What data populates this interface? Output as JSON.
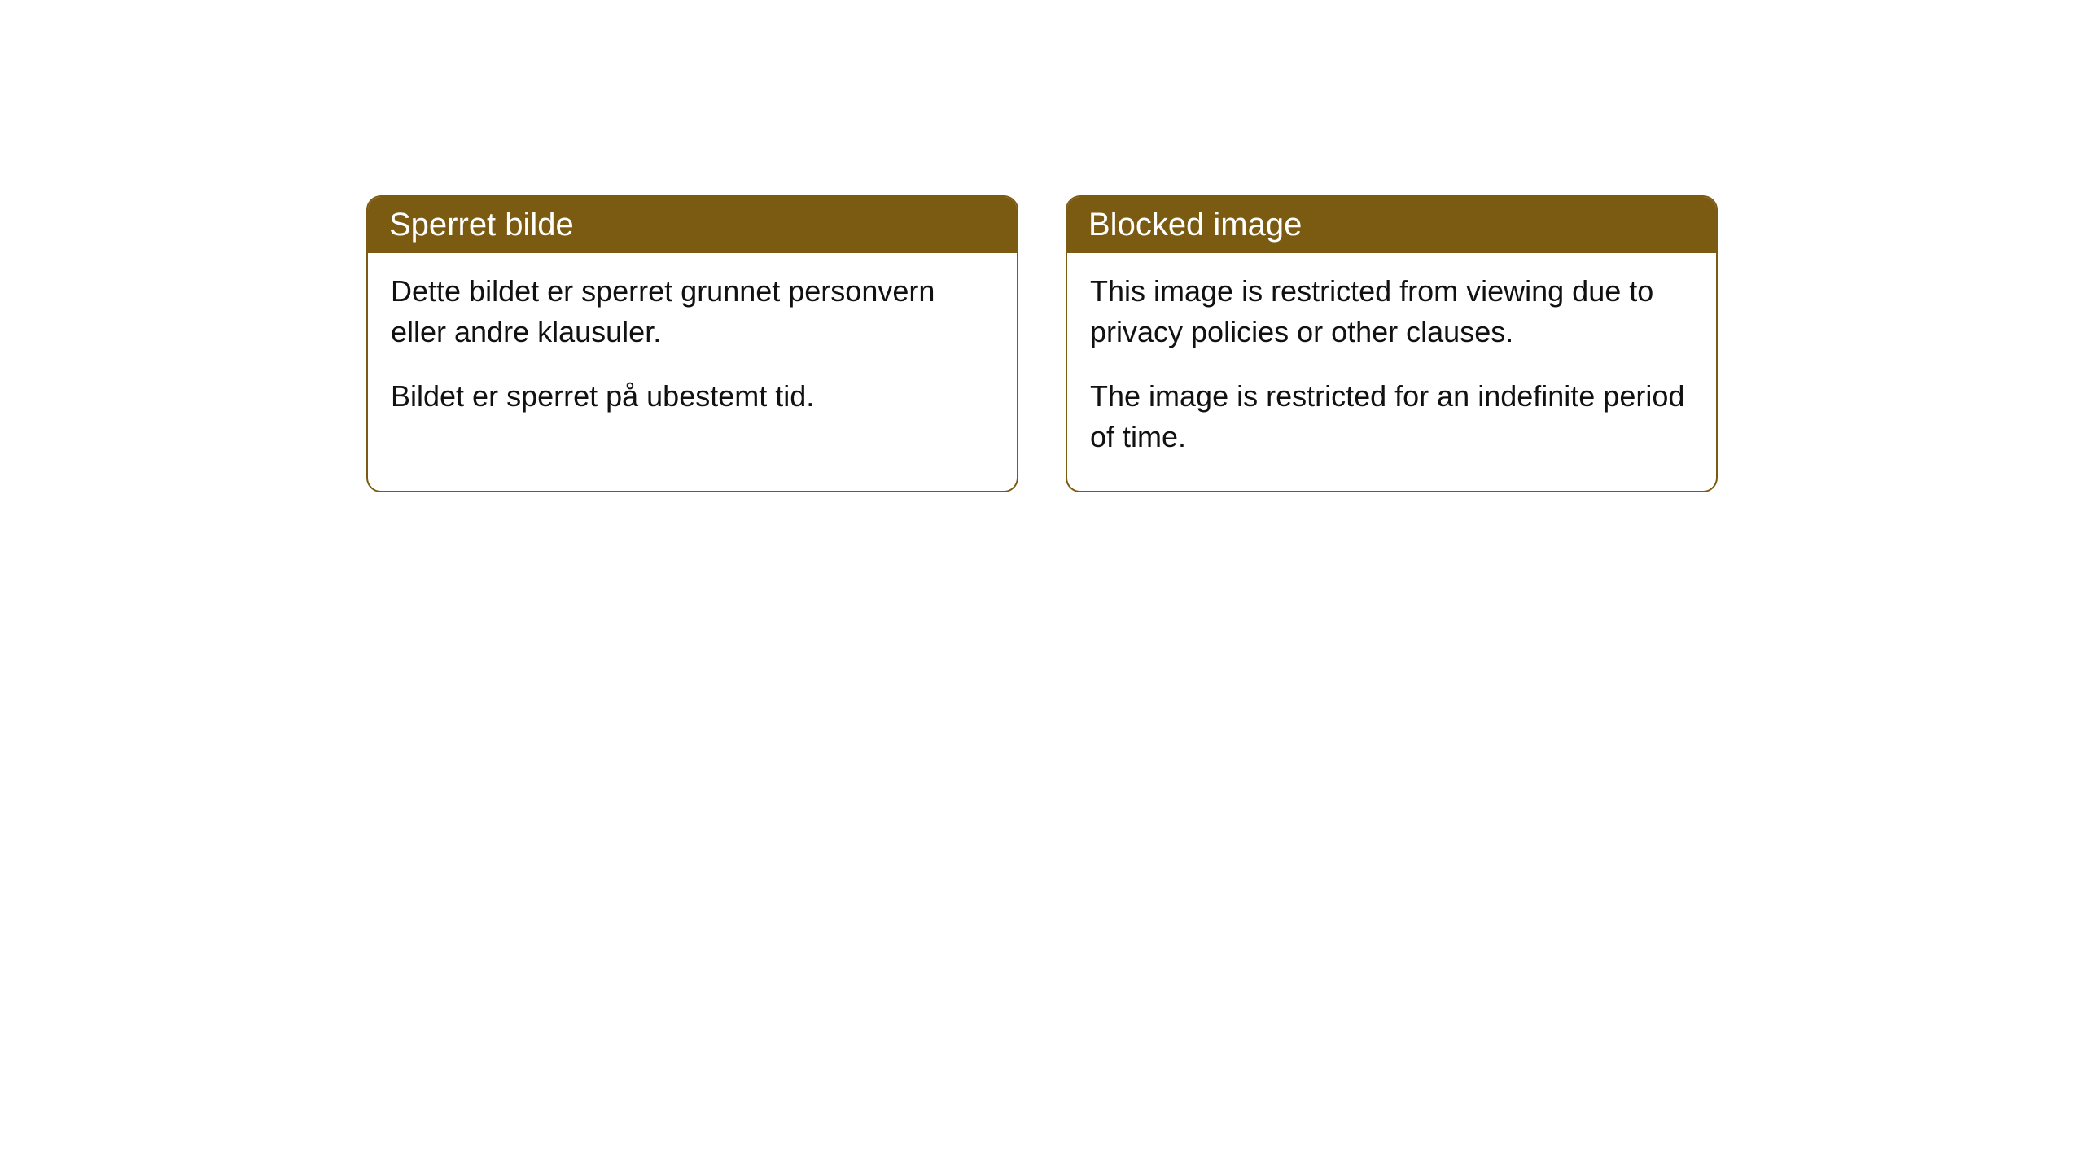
{
  "cards": [
    {
      "title": "Sperret bilde",
      "paragraph1": "Dette bildet er sperret grunnet personvern eller andre klausuler.",
      "paragraph2": "Bildet er sperret på ubestemt tid."
    },
    {
      "title": "Blocked image",
      "paragraph1": "This image is restricted from viewing due to privacy policies or other clauses.",
      "paragraph2": "The image is restricted for an indefinite period of time."
    }
  ],
  "style": {
    "header_background_color": "#7a5b11",
    "header_text_color": "#ffffff",
    "border_color": "#7a5b11",
    "body_background_color": "#ffffff",
    "body_text_color": "#111111",
    "border_radius": 18,
    "header_fontsize": 40,
    "body_fontsize": 36
  }
}
